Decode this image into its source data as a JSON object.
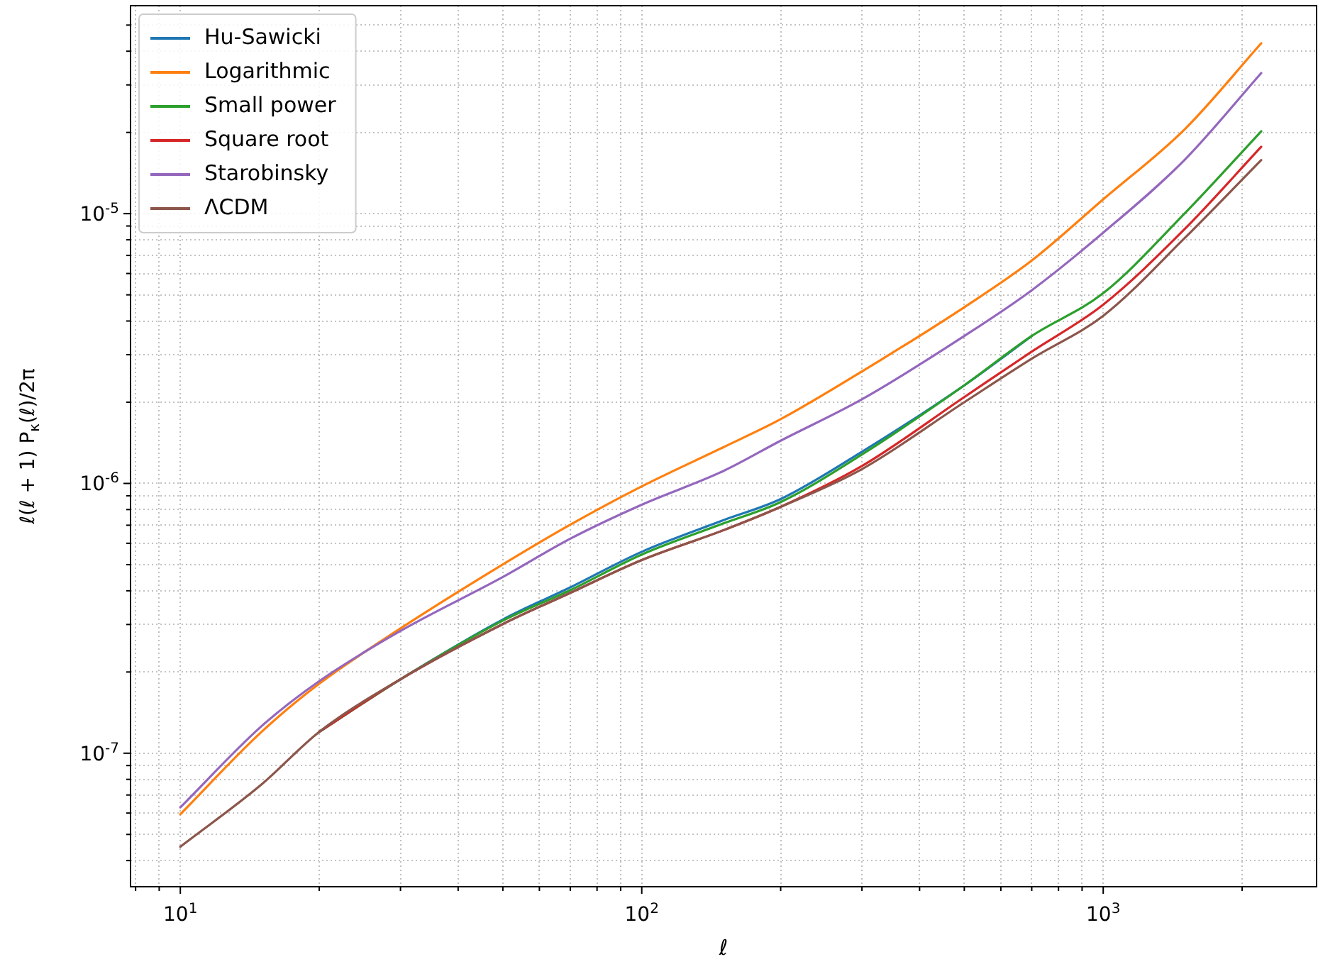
{
  "chart_data": {
    "type": "line",
    "xlabel": "ℓ",
    "ylabel": "ℓ(ℓ + 1) P$_{κ}$(ℓ)/2π",
    "log": "xy",
    "grid": true,
    "legend": "top left",
    "marker": "none",
    "line_style": "solid",
    "x": [
      10,
      15,
      20,
      30,
      50,
      70,
      100,
      150,
      200,
      300,
      500,
      700,
      1000,
      1500,
      2200
    ],
    "xlim": [
      7.8,
      2900
    ],
    "ylim": [
      3.2e-08,
      5.9e-05
    ],
    "xticks": [
      {
        "value": 8,
        "label": null
      },
      {
        "value": 9,
        "label": null
      },
      {
        "value": 10,
        "label": "10$^{1}$"
      },
      {
        "value": 20,
        "label": null
      },
      {
        "value": 30,
        "label": null
      },
      {
        "value": 40,
        "label": null
      },
      {
        "value": 50,
        "label": null
      },
      {
        "value": 60,
        "label": null
      },
      {
        "value": 70,
        "label": null
      },
      {
        "value": 80,
        "label": null
      },
      {
        "value": 90,
        "label": null
      },
      {
        "value": 100,
        "label": "10$^{2}$"
      },
      {
        "value": 200,
        "label": null
      },
      {
        "value": 300,
        "label": null
      },
      {
        "value": 400,
        "label": null
      },
      {
        "value": 500,
        "label": null
      },
      {
        "value": 600,
        "label": null
      },
      {
        "value": 700,
        "label": null
      },
      {
        "value": 800,
        "label": null
      },
      {
        "value": 900,
        "label": null
      },
      {
        "value": 1000,
        "label": "10$^{3}$"
      },
      {
        "value": 2000,
        "label": null
      }
    ],
    "yticks": [
      {
        "value": 4e-08,
        "label": null
      },
      {
        "value": 5e-08,
        "label": null
      },
      {
        "value": 6e-08,
        "label": null
      },
      {
        "value": 7e-08,
        "label": null
      },
      {
        "value": 8e-08,
        "label": null
      },
      {
        "value": 9e-08,
        "label": null
      },
      {
        "value": 1e-07,
        "label": "10$^{-7}$"
      },
      {
        "value": 2e-07,
        "label": null
      },
      {
        "value": 3e-07,
        "label": null
      },
      {
        "value": 4e-07,
        "label": null
      },
      {
        "value": 5e-07,
        "label": null
      },
      {
        "value": 6e-07,
        "label": null
      },
      {
        "value": 7e-07,
        "label": null
      },
      {
        "value": 8e-07,
        "label": null
      },
      {
        "value": 9e-07,
        "label": null
      },
      {
        "value": 1e-06,
        "label": "10$^{-6}$"
      },
      {
        "value": 2e-06,
        "label": null
      },
      {
        "value": 3e-06,
        "label": null
      },
      {
        "value": 4e-06,
        "label": null
      },
      {
        "value": 5e-06,
        "label": null
      },
      {
        "value": 6e-06,
        "label": null
      },
      {
        "value": 7e-06,
        "label": null
      },
      {
        "value": 8e-06,
        "label": null
      },
      {
        "value": 9e-06,
        "label": null
      },
      {
        "value": 1e-05,
        "label": "10$^{-5}$"
      },
      {
        "value": 2e-05,
        "label": null
      },
      {
        "value": 3e-05,
        "label": null
      },
      {
        "value": 4e-05,
        "label": null
      },
      {
        "value": 5e-05,
        "label": null
      }
    ],
    "series": [
      {
        "name": "Hu-Sawicki",
        "color": "#1f77b4",
        "values": [
          null,
          null,
          1.2e-07,
          1.88e-07,
          3.13e-07,
          4.12e-07,
          5.58e-07,
          7.3e-07,
          8.75e-07,
          1.31e-06,
          2.31e-06,
          3.52e-06,
          null,
          null,
          null
        ]
      },
      {
        "name": "Logarithmic",
        "color": "#ff7f0e",
        "values": [
          5.94e-08,
          1.2e-07,
          1.81e-07,
          2.9e-07,
          5.01e-07,
          7.03e-07,
          9.75e-07,
          1.36e-06,
          1.73e-06,
          2.6e-06,
          4.5e-06,
          6.7e-06,
          1.13e-05,
          2.05e-05,
          4.28e-05
        ]
      },
      {
        "name": "Small power",
        "color": "#2ca02c",
        "values": [
          null,
          null,
          1.2e-07,
          1.88e-07,
          3.1e-07,
          4.02e-07,
          5.45e-07,
          7.1e-07,
          8.53e-07,
          1.28e-06,
          2.31e-06,
          3.52e-06,
          5.07e-06,
          1e-05,
          2.02e-05
        ]
      },
      {
        "name": "Square root",
        "color": "#d62728",
        "values": [
          null,
          null,
          1.2e-07,
          1.88e-07,
          3.01e-07,
          3.93e-07,
          5.2e-07,
          6.7e-07,
          8.19e-07,
          1.16e-06,
          2.09e-06,
          3.08e-06,
          4.6e-06,
          8.75e-06,
          1.77e-05
        ]
      },
      {
        "name": "Starobinsky",
        "color": "#9467bd",
        "values": [
          6.3e-08,
          1.26e-07,
          1.85e-07,
          2.84e-07,
          4.5e-07,
          6.24e-07,
          8.34e-07,
          1.11e-06,
          1.44e-06,
          2.05e-06,
          3.52e-06,
          5.2e-06,
          8.5e-06,
          1.58e-05,
          3.32e-05
        ]
      },
      {
        "name": "ΛCDM",
        "color": "#8c564b",
        "values": [
          4.5e-08,
          7.66e-08,
          1.2e-07,
          1.88e-07,
          3.01e-07,
          3.93e-07,
          5.2e-07,
          6.7e-07,
          8.19e-07,
          1.13e-06,
          2e-06,
          2.9e-06,
          4.18e-06,
          8.1e-06,
          1.58e-05
        ]
      }
    ]
  }
}
